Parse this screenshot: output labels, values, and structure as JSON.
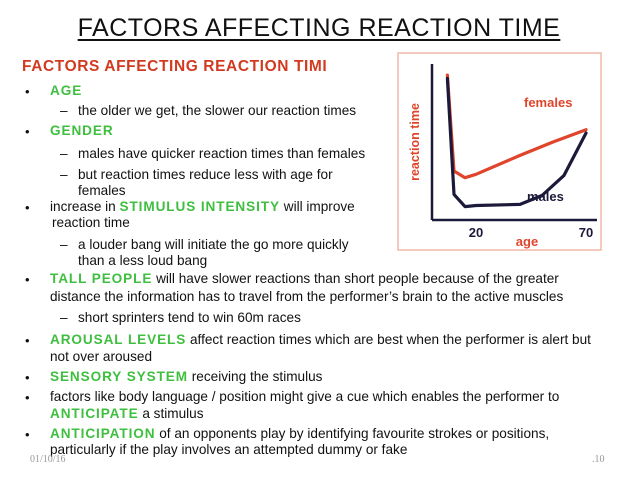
{
  "slide": {
    "title": "FACTORS AFFECTING REACTION TIME",
    "subtitle": "FACTORS AFFECTING REACTION TIMI",
    "bullet_symbol": "•",
    "dash_symbol": "–",
    "items": {
      "age_keyword": "AGE",
      "age_sub1": "the older we get, the slower our reaction times",
      "gender_keyword": "GENDER",
      "gender_sub1": "males have quicker reaction times than females",
      "gender_sub2_line1": "but reaction times reduce less with age for",
      "gender_sub2_line2": "females",
      "stim_pre": "increase in ",
      "stim_keyword": "STIMULUS INTENSITY",
      "stim_post": " will improve",
      "stim_line2": "reaction time",
      "stim_sub1_line1": "a louder bang will initiate the go more quickly",
      "stim_sub1_line2": "than a less loud bang",
      "tall_keyword": "TALL PEOPLE",
      "tall_post": " will have slower reactions than short people because of the greater",
      "tall_line2": "distance the information has to travel from the performer’s brain to the active muscles",
      "tall_sub1": "short sprinters tend to win 60m races",
      "arousal_keyword": "AROUSAL LEVELS",
      "arousal_post": " affect reaction times which are best when the performer is alert but",
      "arousal_line2": "not over aroused",
      "sensory_keyword": "SENSORY SYSTEM",
      "sensory_post": " receiving the stimulus",
      "factors_line1": "factors like body language / position might give a cue which enables the performer to",
      "anticipate_keyword": "ANTICIPATE",
      "anticipate_post": " a stimulus",
      "anticipation_keyword": "ANTICIPATION",
      "anticipation_post": " of an opponents play by identifying favourite strokes or positions,",
      "anticipation_line2": "particularly if the play involves an attempted dummy or fake"
    },
    "footer_left": "01/10/16",
    "footer_right": ".10"
  },
  "chart_data": {
    "type": "line",
    "title": "",
    "xlabel": "age",
    "ylabel": "reaction time",
    "x_ticks": [
      "20",
      "70"
    ],
    "grid": false,
    "series": [
      {
        "name": "females",
        "color": "#e0452b",
        "points": [
          [
            7,
            13
          ],
          [
            10,
            4.4
          ],
          [
            15,
            3.8
          ],
          [
            20,
            4.1
          ],
          [
            40,
            5.8
          ],
          [
            55,
            7.0
          ],
          [
            70,
            8.1
          ]
        ]
      },
      {
        "name": "males",
        "color": "#1c1a3a",
        "points": [
          [
            7,
            12.7
          ],
          [
            10,
            2.3
          ],
          [
            15,
            1.2
          ],
          [
            20,
            1.3
          ],
          [
            40,
            1.4
          ],
          [
            50,
            2.2
          ],
          [
            60,
            4.0
          ],
          [
            70,
            7.8
          ]
        ]
      }
    ],
    "x_range": [
      0,
      75
    ],
    "y_range": [
      0,
      14
    ],
    "colors": {
      "axis": "#1c1a3a",
      "label": "#e0452b",
      "border": "#f2b8a8",
      "keyword_green": "#3fbf3f",
      "subtitle_red": "#d23a20"
    }
  }
}
